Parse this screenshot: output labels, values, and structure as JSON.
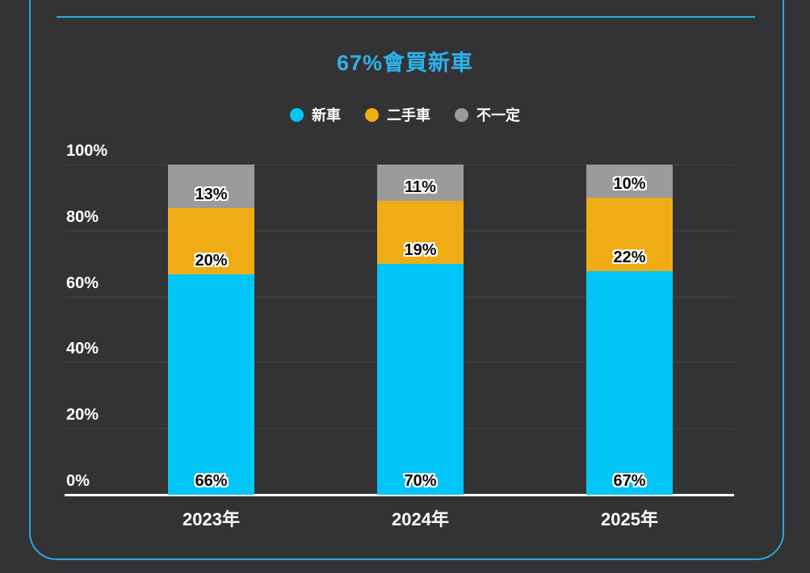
{
  "card": {
    "accent_color": "#2aabdf",
    "background_color": "#333235"
  },
  "chart_data": {
    "type": "bar",
    "stacked": true,
    "normalized": true,
    "title": "67%會買新車",
    "title_color": "#2db3ea",
    "categories": [
      "2023年",
      "2024年",
      "2025年"
    ],
    "series": [
      {
        "name": "新車",
        "color": "#00c5f7",
        "values": [
          66,
          70,
          67
        ]
      },
      {
        "name": "二手車",
        "color": "#f0ac15",
        "values": [
          20,
          19,
          22
        ]
      },
      {
        "name": "不一定",
        "color": "#9b9b9b",
        "values": [
          13,
          11,
          10
        ]
      }
    ],
    "y_ticks": [
      "100%",
      "80%",
      "60%",
      "40%",
      "20%",
      "0%"
    ],
    "ylim": [
      0,
      100
    ],
    "value_label_suffix": "%",
    "legend_position": "top",
    "grid": true,
    "axis_text_color": "#ffffff",
    "gridline_color": "#3e3e3e",
    "value_label_color": "#0d0d0d"
  }
}
